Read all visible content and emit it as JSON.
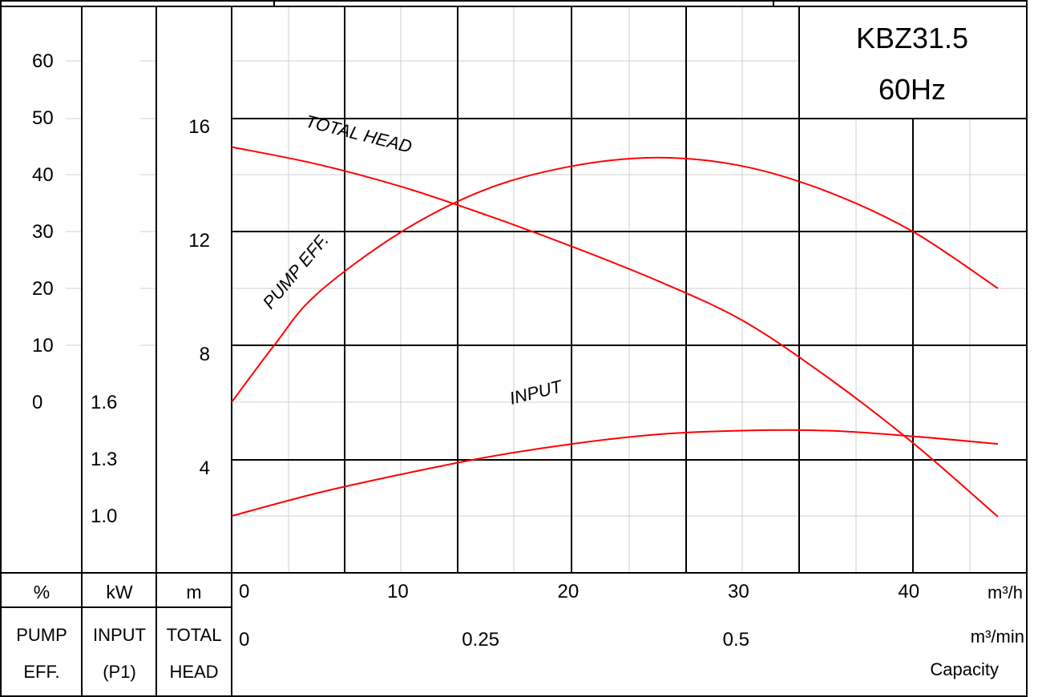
{
  "chart_data": {
    "type": "line",
    "model": "KBZ31.5",
    "frequency": "60Hz",
    "x_unit": "m³/h",
    "x_unit_alt": "m³/min",
    "x_label": "Capacity",
    "xlim": [
      0,
      45
    ],
    "x_ticks": [
      "0",
      "10",
      "20",
      "30",
      "40"
    ],
    "x_alt_ticks": [
      "0",
      "0.25",
      "0.5"
    ],
    "axes": {
      "eff": {
        "unit": "%",
        "name1": "PUMP",
        "name2": "EFF.",
        "range": [
          0,
          60
        ],
        "ticks": [
          "0",
          "10",
          "20",
          "30",
          "40",
          "50",
          "60"
        ]
      },
      "power": {
        "unit": "kW",
        "name1": "INPUT",
        "name2": "(P1)",
        "range": [
          1.0,
          1.6
        ],
        "ticks": [
          "1.0",
          "1.3",
          "1.6"
        ]
      },
      "head": {
        "unit": "m",
        "name1": "TOTAL",
        "name2": "HEAD",
        "range": [
          4,
          16
        ],
        "ticks": [
          "4",
          "8",
          "12",
          "16"
        ]
      }
    },
    "series": [
      {
        "name": "TOTAL HEAD",
        "axis": "head",
        "color": "#ff0000",
        "points": [
          [
            0,
            15.0
          ],
          [
            5,
            14.4
          ],
          [
            10,
            13.6
          ],
          [
            15,
            12.6
          ],
          [
            20,
            11.5
          ],
          [
            25,
            10.3
          ],
          [
            30,
            8.9
          ],
          [
            35,
            6.9
          ],
          [
            40,
            4.6
          ],
          [
            45,
            2.0
          ]
        ]
      },
      {
        "name": "PUMP EFF.",
        "axis": "eff",
        "color": "#ff0000",
        "points": [
          [
            0,
            0
          ],
          [
            2.5,
            10
          ],
          [
            5,
            19
          ],
          [
            10,
            30
          ],
          [
            15,
            37.5
          ],
          [
            20,
            41.5
          ],
          [
            25,
            43
          ],
          [
            30,
            41.5
          ],
          [
            35,
            37
          ],
          [
            40,
            30
          ],
          [
            45,
            20
          ]
        ]
      },
      {
        "name": "INPUT",
        "axis": "power",
        "color": "#ff0000",
        "points": [
          [
            0,
            1.0
          ],
          [
            5,
            1.12
          ],
          [
            10,
            1.22
          ],
          [
            15,
            1.31
          ],
          [
            20,
            1.38
          ],
          [
            25,
            1.43
          ],
          [
            30,
            1.45
          ],
          [
            35,
            1.45
          ],
          [
            40,
            1.42
          ],
          [
            45,
            1.38
          ]
        ]
      }
    ],
    "grid": true
  }
}
